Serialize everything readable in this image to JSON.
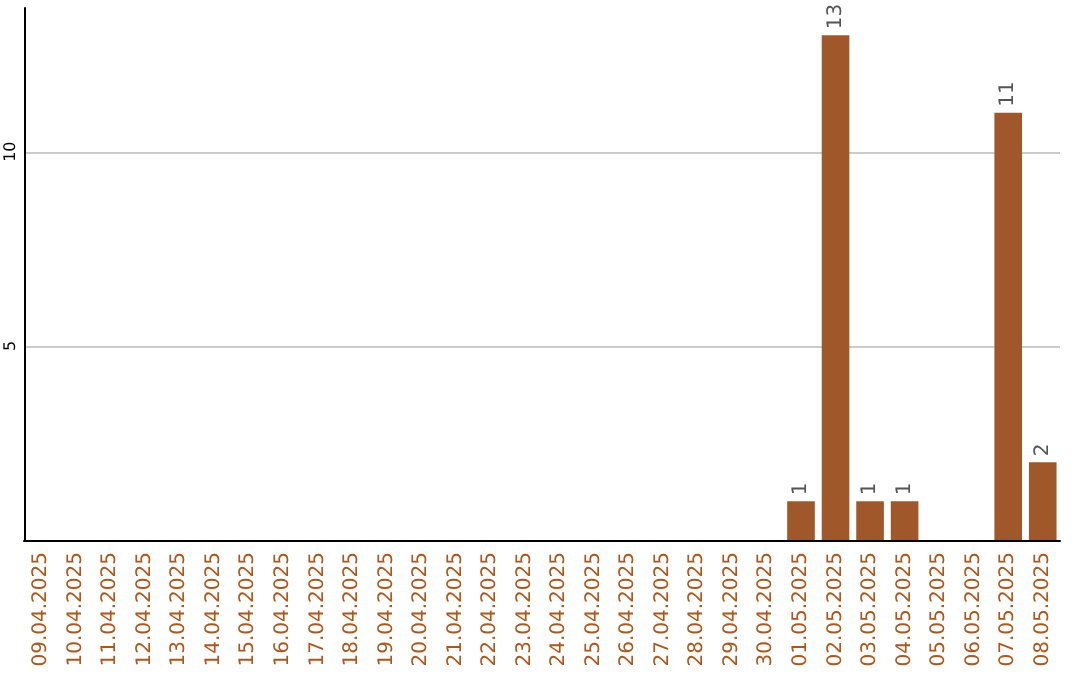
{
  "chart_data": {
    "type": "bar",
    "categories": [
      "09.04.2025",
      "10.04.2025",
      "11.04.2025",
      "12.04.2025",
      "13.04.2025",
      "14.04.2025",
      "15.04.2025",
      "16.04.2025",
      "17.04.2025",
      "18.04.2025",
      "19.04.2025",
      "20.04.2025",
      "21.04.2025",
      "22.04.2025",
      "23.04.2025",
      "24.04.2025",
      "25.04.2025",
      "26.04.2025",
      "27.04.2025",
      "28.04.2025",
      "29.04.2025",
      "30.04.2025",
      "01.05.2025",
      "02.05.2025",
      "03.05.2025",
      "04.05.2025",
      "05.05.2025",
      "06.05.2025",
      "07.05.2025",
      "08.05.2025"
    ],
    "values": [
      0,
      0,
      0,
      0,
      0,
      0,
      0,
      0,
      0,
      0,
      0,
      0,
      0,
      0,
      0,
      0,
      0,
      0,
      0,
      0,
      0,
      0,
      1,
      13,
      1,
      1,
      0,
      0,
      11,
      2
    ],
    "value_labels": [
      null,
      null,
      null,
      null,
      null,
      null,
      null,
      null,
      null,
      null,
      null,
      null,
      null,
      null,
      null,
      null,
      null,
      null,
      null,
      null,
      null,
      null,
      "1",
      "13",
      "1",
      "1",
      null,
      null,
      "11",
      "2"
    ],
    "color": "#a0582a",
    "ylim": [
      0,
      13.7
    ],
    "yticks": [
      5,
      10
    ],
    "grid": "y"
  }
}
